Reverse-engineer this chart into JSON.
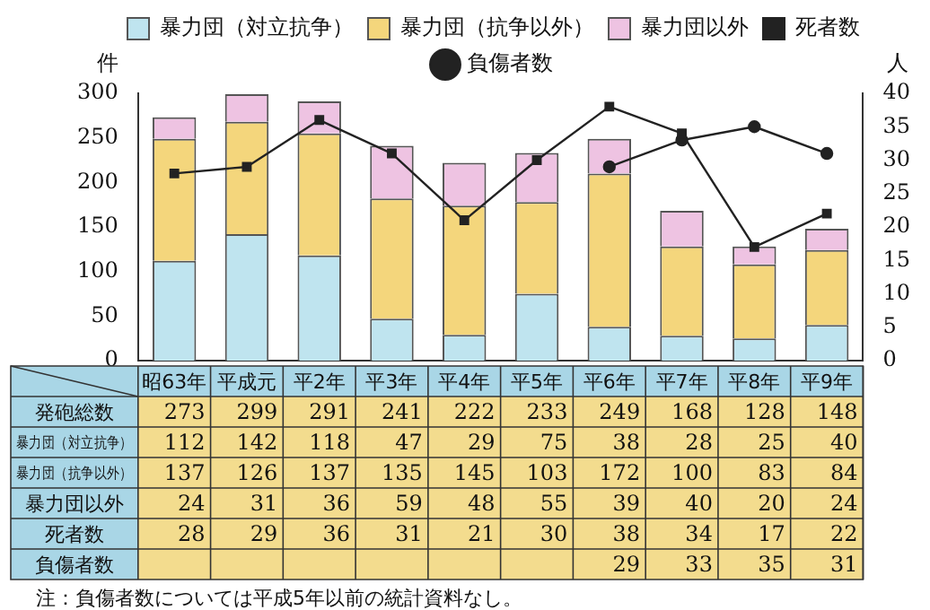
{
  "chart_data": {
    "type": "bar",
    "stacked": true,
    "ylabel": "件",
    "y2label": "人",
    "categories": [
      "昭63年",
      "平成元",
      "平2年",
      "平3年",
      "平4年",
      "平5年",
      "平6年",
      "平7年",
      "平8年",
      "平9年"
    ],
    "series": [
      {
        "name": "暴力団（対立抗争）",
        "color": "#bfe4ef",
        "values": [
          112,
          142,
          118,
          47,
          29,
          75,
          38,
          28,
          25,
          40
        ]
      },
      {
        "name": "暴力団（抗争以外）",
        "color": "#f4d67c",
        "values": [
          137,
          126,
          137,
          135,
          145,
          103,
          172,
          100,
          83,
          84
        ]
      },
      {
        "name": "暴力団以外",
        "color": "#eec3e2",
        "values": [
          24,
          31,
          36,
          59,
          48,
          55,
          39,
          40,
          20,
          24
        ]
      },
      {
        "name": "死者数",
        "type": "line",
        "axis": "y2",
        "marker": "square",
        "color": "#222222",
        "values": [
          28,
          29,
          36,
          31,
          21,
          30,
          38,
          34,
          17,
          22
        ]
      },
      {
        "name": "負傷者数",
        "type": "line",
        "axis": "y2",
        "marker": "circle",
        "color": "#222222",
        "values": [
          null,
          null,
          null,
          null,
          null,
          null,
          29,
          33,
          35,
          31
        ]
      }
    ],
    "totals": [
      "273",
      "299",
      "291",
      "241",
      "222",
      "233",
      "249",
      "168",
      "128",
      "148"
    ],
    "ylim": [
      0,
      300
    ],
    "yticks": [
      0,
      50,
      100,
      150,
      200,
      250,
      300
    ],
    "y2lim": [
      0,
      40
    ],
    "y2ticks": [
      0,
      5,
      10,
      15,
      20,
      25,
      30,
      35,
      40
    ],
    "grid": false,
    "legend": "top",
    "data_labels": true,
    "annotations": [
      "発砲総数",
      "注：負傷者数については平成5年以前の統計資料なし。"
    ]
  }
}
